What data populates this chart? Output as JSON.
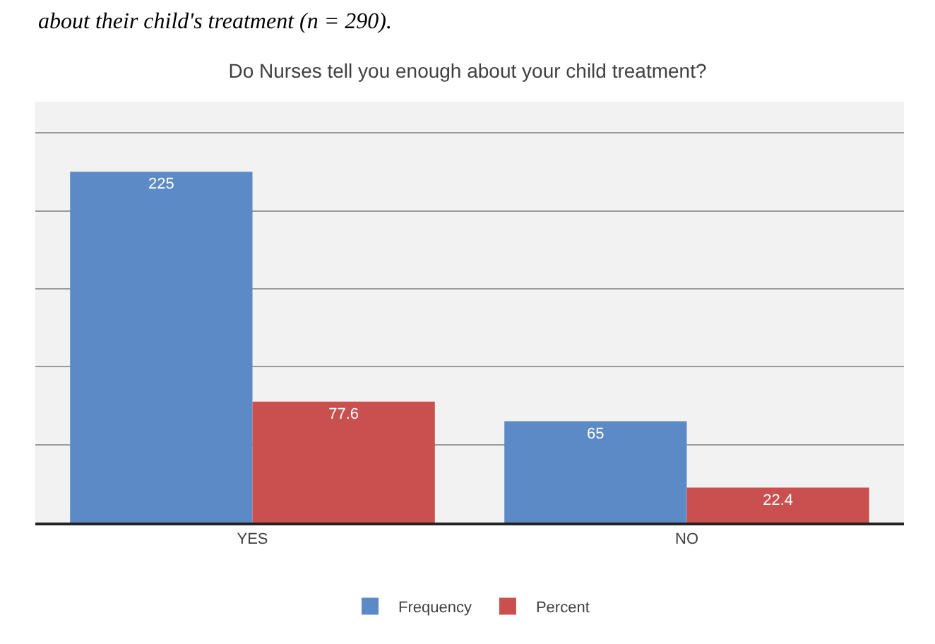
{
  "chart_data": {
    "type": "bar",
    "title": "Do Nurses tell you enough about your child treatment?",
    "annotations": [
      "about their child's treatment (n = 290)."
    ],
    "categories": [
      "YES",
      "NO"
    ],
    "series": [
      {
        "name": "Frequency",
        "color": "#5b8ac6",
        "values": [
          225,
          65
        ]
      },
      {
        "name": "Percent",
        "color": "#c9504f",
        "values": [
          77.6,
          22.4
        ]
      }
    ],
    "ylim": [
      0,
      270
    ],
    "yticks": [
      {
        "value": 0,
        "label": null
      },
      {
        "value": 50,
        "label": null
      },
      {
        "value": 100,
        "label": null
      },
      {
        "value": 150,
        "label": null
      },
      {
        "value": 200,
        "label": null
      },
      {
        "value": 250,
        "label": null
      }
    ],
    "tick_labels": "x",
    "grid": "y",
    "legend": "bottom",
    "data_labels": true
  }
}
